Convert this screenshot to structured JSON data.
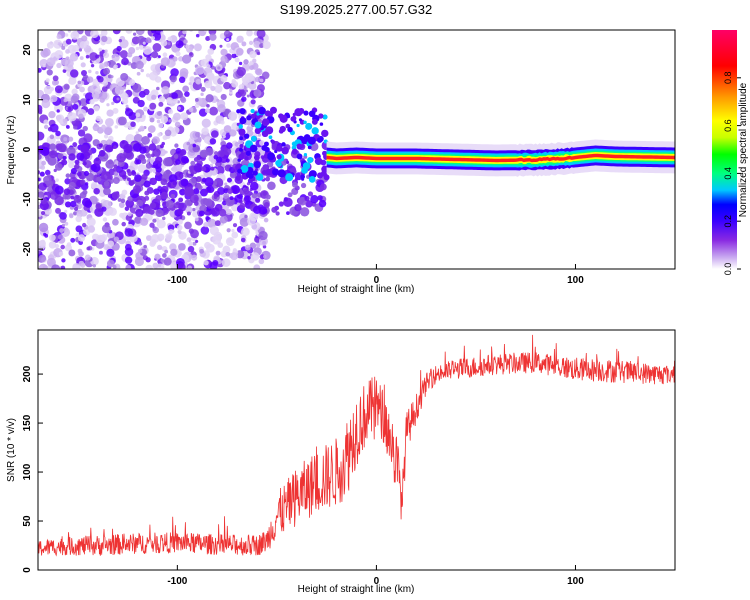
{
  "title": "S199.2025.277.00.57.G32",
  "chart_data": [
    {
      "type": "heatmap",
      "title": "S199.2025.277.00.57.G32",
      "xlabel": "Height of straight line (km)",
      "ylabel": "Frequency (Hz)",
      "xlim": [
        -170,
        150
      ],
      "ylim": [
        -24,
        24
      ],
      "xticks": [
        -100,
        0,
        100
      ],
      "yticks": [
        -20,
        -10,
        0,
        10,
        20
      ],
      "features": {
        "noise_region": [
          -170,
          -55
        ],
        "transition_region": [
          -70,
          -25
        ],
        "ridge_start_x": -25,
        "ridge": {
          "x": [
            -25,
            -20,
            -10,
            0,
            20,
            40,
            60,
            80,
            90,
            100,
            110,
            120,
            150
          ],
          "y": [
            -1.6,
            -1.8,
            -1.6,
            -1.8,
            -1.8,
            -2.0,
            -2.2,
            -2.1,
            -1.9,
            -1.6,
            -1.2,
            -1.4,
            -1.6
          ]
        }
      },
      "colorbar": {
        "label": "Normalized spectral amplitude",
        "range": [
          0,
          1
        ],
        "ticks": [
          "0.0",
          "0.2",
          "0.4",
          "0.6",
          "0.8"
        ],
        "colors": [
          "#ffffff",
          "#c8a8f0",
          "#8a2be2",
          "#3a00ff",
          "#0000ff",
          "#00c8ff",
          "#00ff80",
          "#00ff00",
          "#c8ff00",
          "#ffff00",
          "#ff9900",
          "#ff0000",
          "#ff0066"
        ]
      }
    },
    {
      "type": "line",
      "title": "",
      "xlabel": "Height of straight line (km)",
      "ylabel": "SNR (10 * v/v)",
      "xlim": [
        -170,
        150
      ],
      "ylim": [
        0,
        245
      ],
      "xticks": [
        -100,
        0,
        100
      ],
      "yticks": [
        0,
        50,
        100,
        150,
        200
      ],
      "color": "#ee3333",
      "series": [
        {
          "name": "SNR",
          "x": [
            -170,
            -160,
            -140,
            -120,
            -100,
            -80,
            -60,
            -55,
            -50,
            -40,
            -30,
            -20,
            -15,
            -10,
            -5,
            0,
            5,
            10,
            13,
            15,
            20,
            25,
            30,
            40,
            60,
            80,
            100,
            120,
            140,
            150
          ],
          "y": [
            22,
            24,
            25,
            27,
            28,
            26,
            25,
            30,
            55,
            75,
            90,
            100,
            115,
            145,
            160,
            170,
            150,
            110,
            70,
            140,
            165,
            190,
            200,
            205,
            210,
            212,
            205,
            203,
            200,
            200
          ],
          "spike_amplitude": [
            15,
            15,
            18,
            18,
            18,
            18,
            18,
            20,
            40,
            50,
            55,
            60,
            70,
            65,
            55,
            50,
            45,
            60,
            40,
            35,
            25,
            18,
            16,
            18,
            18,
            18,
            20,
            20,
            18,
            16
          ]
        }
      ]
    }
  ]
}
